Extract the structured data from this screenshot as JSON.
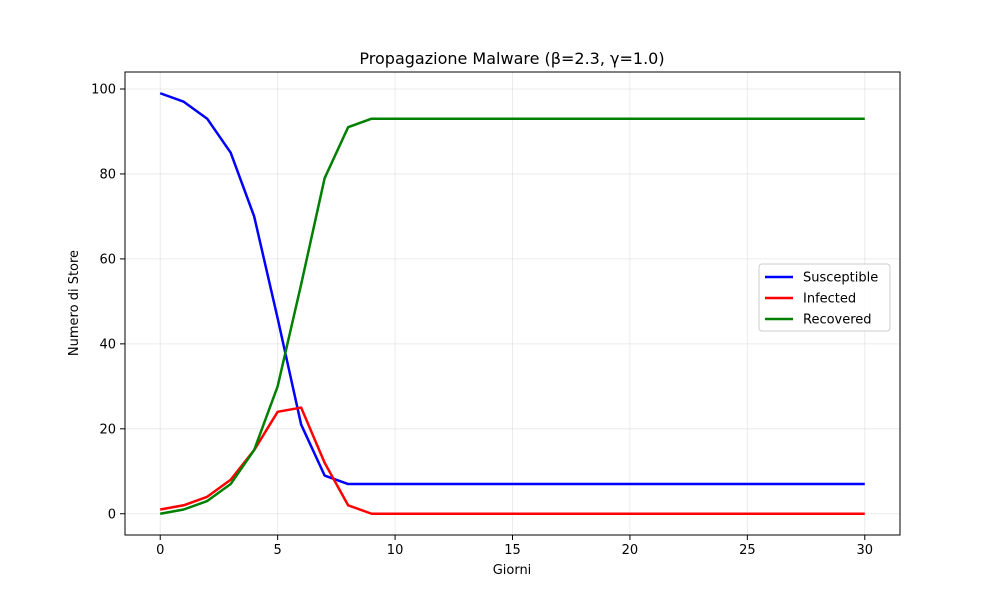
{
  "chart_data": {
    "type": "line",
    "title": "Propagazione Malware (β=2.3, γ=1.0)",
    "xlabel": "Giorni",
    "ylabel": "Numero di Store",
    "xlim": [
      -1.5,
      31.5
    ],
    "ylim": [
      -5,
      104
    ],
    "xticks": [
      0,
      5,
      10,
      15,
      20,
      25,
      30
    ],
    "yticks": [
      0,
      20,
      40,
      60,
      80,
      100
    ],
    "grid": true,
    "legend_position": "center-right",
    "x": [
      0,
      1,
      2,
      3,
      4,
      5,
      6,
      7,
      8,
      9,
      10,
      11,
      12,
      13,
      14,
      15,
      16,
      17,
      18,
      19,
      20,
      21,
      22,
      23,
      24,
      25,
      26,
      27,
      28,
      29,
      30
    ],
    "series": [
      {
        "name": "Susceptible",
        "color": "#0000ff",
        "values": [
          99,
          97,
          93,
          85,
          70,
          46,
          21,
          9,
          7,
          7,
          7,
          7,
          7,
          7,
          7,
          7,
          7,
          7,
          7,
          7,
          7,
          7,
          7,
          7,
          7,
          7,
          7,
          7,
          7,
          7,
          7
        ]
      },
      {
        "name": "Infected",
        "color": "#ff0000",
        "values": [
          1,
          2,
          4,
          8,
          15,
          24,
          25,
          12,
          2,
          0,
          0,
          0,
          0,
          0,
          0,
          0,
          0,
          0,
          0,
          0,
          0,
          0,
          0,
          0,
          0,
          0,
          0,
          0,
          0,
          0,
          0
        ]
      },
      {
        "name": "Recovered",
        "color": "#008000",
        "values": [
          0,
          1,
          3,
          7,
          15,
          30,
          54,
          79,
          91,
          93,
          93,
          93,
          93,
          93,
          93,
          93,
          93,
          93,
          93,
          93,
          93,
          93,
          93,
          93,
          93,
          93,
          93,
          93,
          93,
          93,
          93
        ]
      }
    ]
  }
}
